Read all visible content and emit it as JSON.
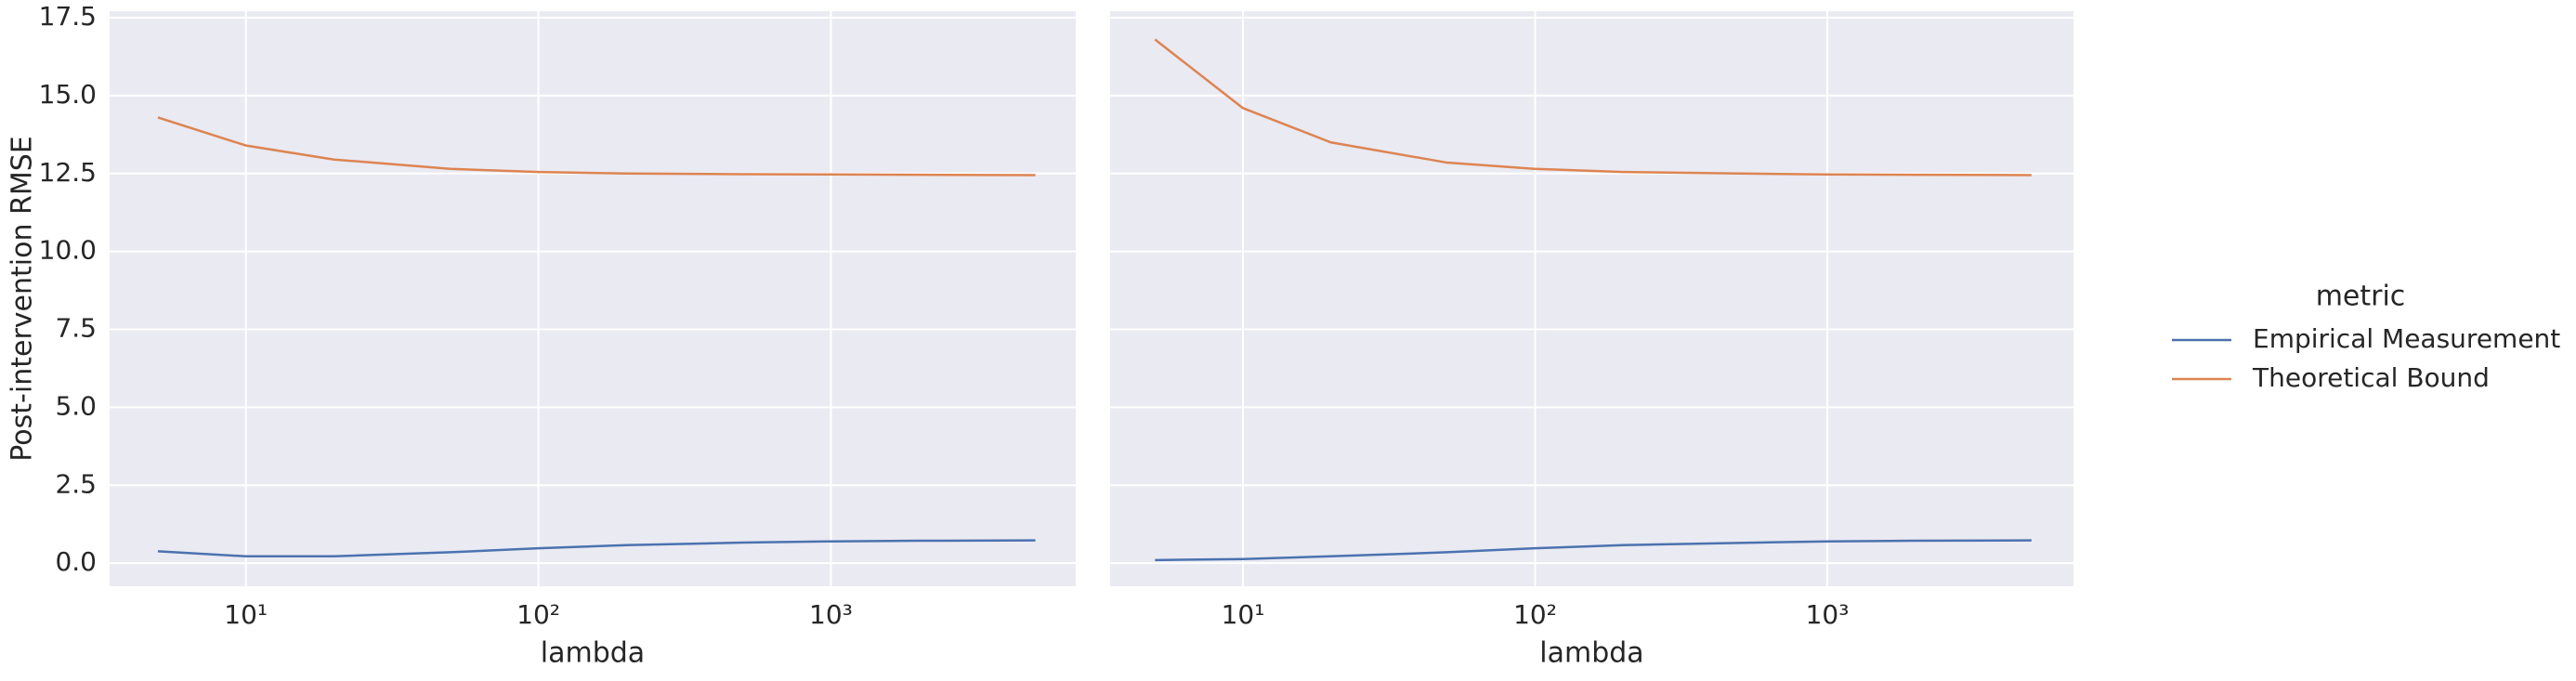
{
  "chart_data": [
    {
      "type": "line",
      "y_label": "Post-intervention RMSE",
      "x_label": "lambda",
      "log_x": true,
      "grid": true,
      "legend": {
        "title": "metric",
        "position": "right"
      },
      "x": [
        5,
        10,
        20,
        50,
        100,
        200,
        500,
        1000,
        2000,
        5000
      ],
      "series": [
        {
          "name": "Empirical Measurement",
          "color": "#4c72b0",
          "values": [
            0.38,
            0.22,
            0.22,
            0.35,
            0.48,
            0.58,
            0.66,
            0.7,
            0.72,
            0.73
          ]
        },
        {
          "name": "Theoretical Bound",
          "color": "#dd8452",
          "values": [
            14.3,
            13.4,
            12.95,
            12.65,
            12.55,
            12.5,
            12.48,
            12.47,
            12.46,
            12.45
          ]
        }
      ],
      "xlim": [
        3.42,
        6870
      ],
      "xticks": [
        {
          "value": 10,
          "label": "10¹"
        },
        {
          "value": 100,
          "label": "10²"
        },
        {
          "value": 1000,
          "label": "10³"
        }
      ],
      "ylim": [
        -0.74,
        17.71
      ],
      "yticks": [
        {
          "value": 0,
          "label": "0.0"
        },
        2.5,
        {
          "value": 5,
          "label": "5.0"
        },
        7.5,
        {
          "value": 10,
          "label": "10.0"
        },
        12.5,
        {
          "value": 15,
          "label": "15.0"
        },
        17.5
      ]
    },
    {
      "type": "line",
      "x_label": "lambda",
      "log_x": true,
      "grid": true,
      "x": [
        5,
        10,
        20,
        50,
        100,
        200,
        500,
        1000,
        2000,
        5000
      ],
      "series": [
        {
          "color": "#4c72b0",
          "values": [
            0.1,
            0.13,
            0.22,
            0.35,
            0.48,
            0.58,
            0.65,
            0.7,
            0.72,
            0.73
          ]
        },
        {
          "color": "#dd8452",
          "values": [
            16.8,
            14.6,
            13.5,
            12.85,
            12.65,
            12.55,
            12.5,
            12.47,
            12.46,
            12.45
          ]
        }
      ],
      "xlim": [
        3.51,
        6960
      ],
      "xticks": [
        {
          "value": 10,
          "label": "10¹"
        },
        {
          "value": 100,
          "label": "10²"
        },
        {
          "value": 1000,
          "label": "10³"
        }
      ],
      "ylim": [
        -0.74,
        17.71
      ],
      "yticks": [
        0,
        2.5,
        5,
        7.5,
        10,
        12.5,
        15,
        17.5
      ]
    }
  ]
}
